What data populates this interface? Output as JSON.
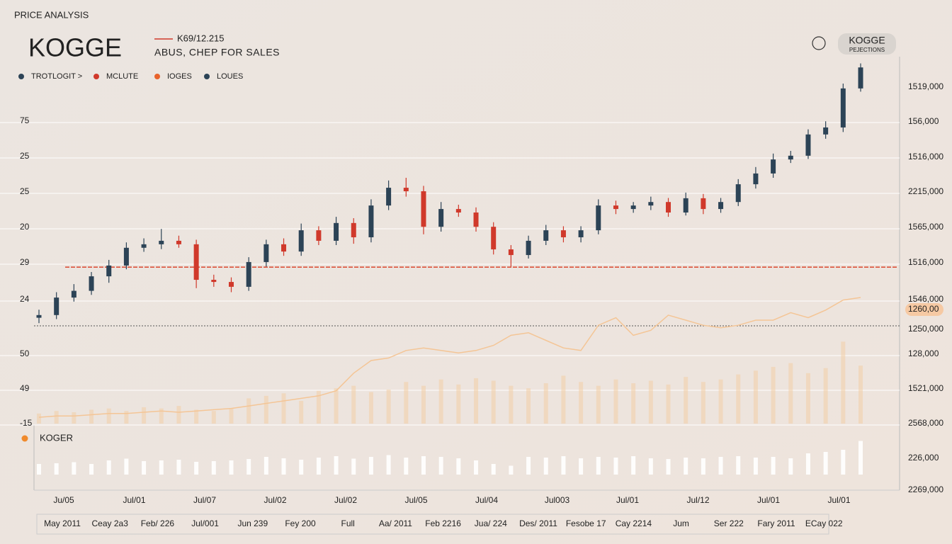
{
  "chart_data": {
    "type": "candlestick",
    "kicker": "PRICE ANALYSIS",
    "title": "KOGGE",
    "subtitle_value": "K69/12.215",
    "subtitle": "ABUS, CHEP FOR SALES",
    "button": [
      "KOGGE",
      "PEJECTIONS"
    ],
    "legend": [
      {
        "name": "TROTLOGIT >",
        "color": "#2c4356"
      },
      {
        "name": "MCLUTE",
        "color": "#d0392b"
      },
      {
        "name": "IOGES",
        "color": "#e8622c"
      },
      {
        "name": "LOUES",
        "color": "#2c4356"
      }
    ],
    "up_color": "#2c4356",
    "down_color": "#d0392b",
    "left_labels": [
      "75",
      "25",
      "25",
      "20",
      "29",
      "24",
      "50",
      "49",
      "-15"
    ],
    "right_labels": [
      "1519,000",
      "156,000",
      "1516,000",
      "2215,000",
      "1565,000",
      "1516,000",
      "1546,000",
      "1260,00",
      "1250,000",
      "128,000",
      "1521,000",
      "2568,000",
      "226,000",
      "2269,000"
    ],
    "panel_label": "KOGER",
    "x_labels": [
      "Ju/05",
      "Jul/01",
      "Jul/07",
      "Jul/02",
      "Jul/02",
      "Jul/05",
      "Jul/04",
      "Jul003",
      "Jul/01",
      "Jul/12",
      "Jul/01",
      "Jul/01"
    ],
    "date_labels": [
      "May 2011",
      "Ceay 2a3",
      "Feb/ 226",
      "Jul/001",
      "Jun 239",
      "Fey 200",
      "Full",
      "Aa/ 2011",
      "Feb 2216",
      "Jua/ 224",
      "Des/ 2011",
      "Fesobe 17",
      "Cay 2214",
      "Jum",
      "Ser 222",
      "Fary 2011",
      "ECay 022"
    ],
    "ylim": [
      0,
      100
    ],
    "reference_line": 21.8,
    "open": [
      3,
      4,
      10.5,
      13,
      18.4,
      22.4,
      29,
      30.3,
      31.6,
      30.3,
      17.1,
      16.3,
      14.5,
      23.7,
      30.3,
      27.6,
      35.5,
      31.6,
      38.2,
      32.9,
      44.7,
      51.3,
      50,
      36.8,
      43.4,
      42.1,
      36.8,
      28.4,
      26.3,
      31.6,
      35.5,
      32.9,
      35.5,
      44.7,
      43.4,
      44.7,
      46,
      42.1,
      47.4,
      43.4,
      46,
      52.6,
      56.6,
      61.8,
      63.2,
      71.1,
      73.7,
      88.2
    ],
    "high": [
      6,
      12.5,
      15.5,
      20,
      24.5,
      31,
      32.5,
      36,
      33.5,
      32,
      19,
      18,
      25.5,
      32,
      32.5,
      38,
      37,
      40.5,
      40,
      47,
      54,
      55,
      52,
      46,
      45,
      44,
      38.5,
      30,
      33.5,
      37.5,
      37,
      37,
      47,
      46.5,
      46,
      48,
      47.5,
      49.5,
      49,
      47.5,
      54.5,
      59,
      64,
      65,
      73,
      76,
      90,
      97.5
    ],
    "low": [
      1,
      2.5,
      9,
      11.5,
      16,
      21,
      27.5,
      28.5,
      29,
      14,
      14.5,
      12.5,
      13,
      22,
      26,
      26,
      30,
      30,
      30.5,
      31,
      43,
      48,
      34,
      35,
      40.5,
      35,
      26.5,
      22,
      25,
      30,
      31,
      31,
      34,
      41.5,
      42,
      43,
      40.5,
      41,
      41.5,
      42,
      44.5,
      51,
      55,
      60.5,
      62,
      69.5,
      72,
      87
    ],
    "close": [
      4,
      10.5,
      13,
      18.4,
      22.4,
      29,
      30.3,
      31.6,
      30.3,
      17.1,
      16.3,
      14.5,
      23.7,
      30.3,
      27.6,
      35.5,
      31.6,
      38.2,
      32.9,
      44.7,
      51.3,
      50,
      36.8,
      43.4,
      42.1,
      36.8,
      28.4,
      26.3,
      31.6,
      35.5,
      32.9,
      35.5,
      44.7,
      43.4,
      44.7,
      46,
      42.1,
      47.4,
      43.4,
      46,
      52.6,
      56.6,
      61.8,
      63.2,
      71.1,
      73.7,
      88.2,
      96
    ],
    "volume": {
      "ylim": [
        0,
        100
      ],
      "color": "#f2cda6",
      "values": [
        8,
        10,
        9,
        11,
        12,
        10,
        13,
        12,
        14,
        11,
        10,
        12,
        20,
        22,
        24,
        18,
        26,
        28,
        30,
        25,
        27,
        33,
        30,
        35,
        31,
        36,
        34,
        30,
        28,
        32,
        38,
        33,
        30,
        35,
        32,
        34,
        31,
        37,
        33,
        35,
        39,
        42,
        45,
        48,
        40,
        44,
        65,
        46
      ]
    },
    "trend": {
      "color": "#f4c596",
      "values": [
        5,
        6,
        6,
        7,
        8,
        8,
        9,
        10,
        9,
        10,
        11,
        12,
        14,
        16,
        18,
        20,
        22,
        26,
        40,
        50,
        52,
        58,
        60,
        58,
        56,
        58,
        62,
        70,
        72,
        66,
        60,
        58,
        78,
        84,
        70,
        74,
        86,
        82,
        78,
        76,
        78,
        82,
        82,
        88,
        84,
        90,
        98,
        100
      ]
    },
    "activity": {
      "ylim": [
        0,
        100
      ],
      "color": "#ffffff",
      "values": [
        30,
        32,
        35,
        30,
        40,
        45,
        38,
        40,
        42,
        36,
        38,
        40,
        44,
        50,
        46,
        42,
        48,
        52,
        45,
        50,
        55,
        48,
        52,
        50,
        46,
        40,
        30,
        25,
        50,
        48,
        52,
        46,
        50,
        48,
        52,
        46,
        44,
        48,
        46,
        50,
        52,
        48,
        50,
        46,
        60,
        64,
        70,
        95
      ]
    }
  }
}
